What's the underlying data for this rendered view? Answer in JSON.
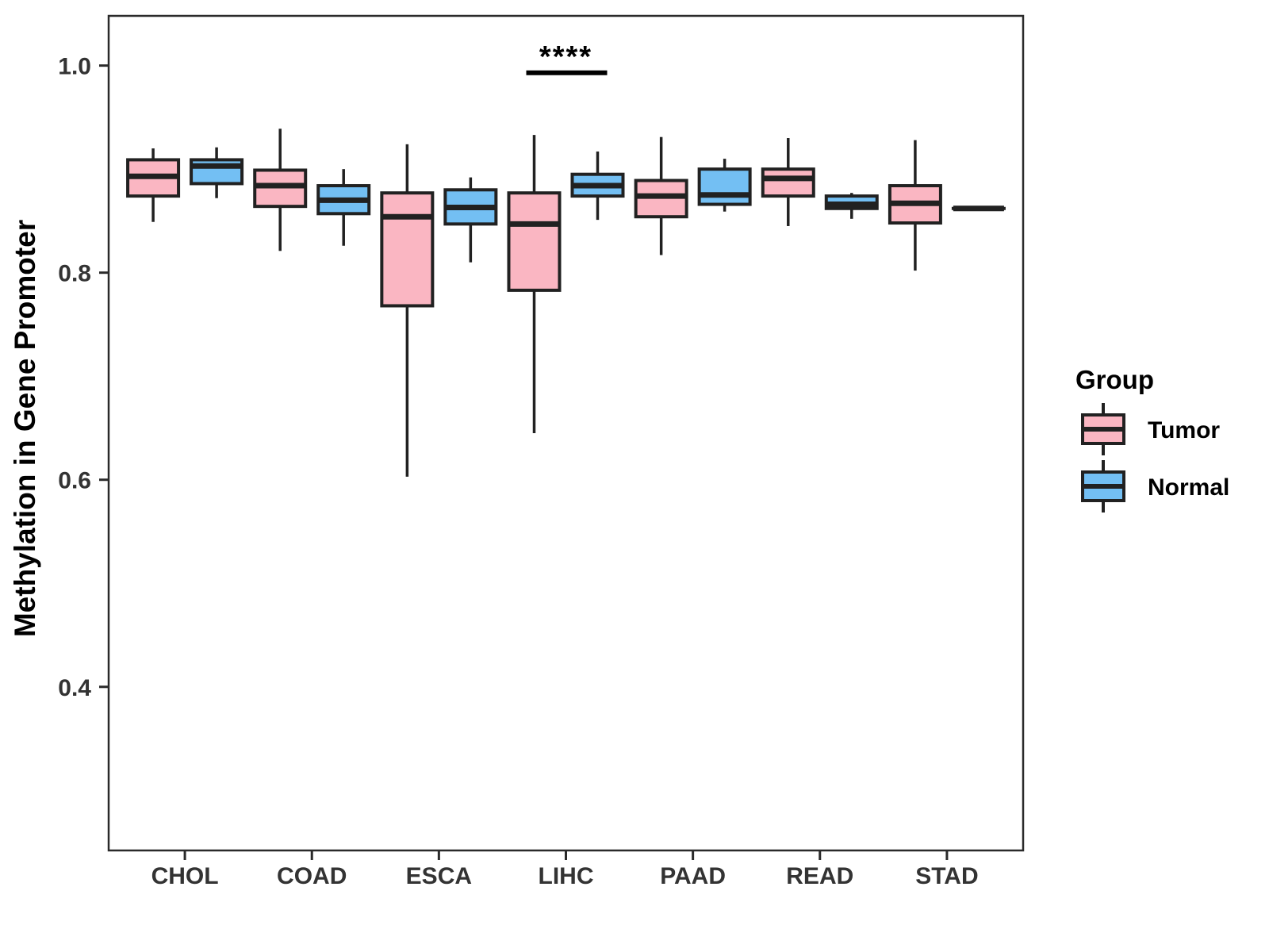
{
  "chart_data": {
    "type": "boxplot",
    "ylabel": "Methylation in Gene Promoter",
    "categories": [
      "CHOL",
      "COAD",
      "ESCA",
      "LIHC",
      "PAAD",
      "READ",
      "STAD"
    ],
    "yticks": [
      1.0,
      0.8,
      0.6,
      0.4
    ],
    "ylim": [
      0.242,
      1.048
    ],
    "grid": false,
    "legend": {
      "title": "Group",
      "position": "right"
    },
    "groups": [
      {
        "name": "Tumor",
        "color": "#FAB6C2"
      },
      {
        "name": "Normal",
        "color": "#73BFF3"
      }
    ],
    "series": [
      {
        "name": "Tumor",
        "boxes": [
          {
            "category": "CHOL",
            "min": 0.849,
            "q1": 0.874,
            "median": 0.893,
            "q3": 0.909,
            "max": 0.92
          },
          {
            "category": "COAD",
            "min": 0.821,
            "q1": 0.864,
            "median": 0.884,
            "q3": 0.899,
            "max": 0.939
          },
          {
            "category": "ESCA",
            "min": 0.603,
            "q1": 0.768,
            "median": 0.854,
            "q3": 0.877,
            "max": 0.924
          },
          {
            "category": "LIHC",
            "min": 0.645,
            "q1": 0.783,
            "median": 0.847,
            "q3": 0.877,
            "max": 0.933
          },
          {
            "category": "PAAD",
            "min": 0.817,
            "q1": 0.854,
            "median": 0.874,
            "q3": 0.889,
            "max": 0.931
          },
          {
            "category": "READ",
            "min": 0.845,
            "q1": 0.874,
            "median": 0.891,
            "q3": 0.9,
            "max": 0.93
          },
          {
            "category": "STAD",
            "min": 0.802,
            "q1": 0.848,
            "median": 0.867,
            "q3": 0.884,
            "max": 0.928
          }
        ]
      },
      {
        "name": "Normal",
        "boxes": [
          {
            "category": "CHOL",
            "min": 0.872,
            "q1": 0.886,
            "median": 0.903,
            "q3": 0.909,
            "max": 0.921
          },
          {
            "category": "COAD",
            "min": 0.826,
            "q1": 0.857,
            "median": 0.87,
            "q3": 0.884,
            "max": 0.9
          },
          {
            "category": "ESCA",
            "min": 0.81,
            "q1": 0.847,
            "median": 0.863,
            "q3": 0.88,
            "max": 0.892
          },
          {
            "category": "LIHC",
            "min": 0.851,
            "q1": 0.874,
            "median": 0.884,
            "q3": 0.895,
            "max": 0.917
          },
          {
            "category": "PAAD",
            "min": 0.859,
            "q1": 0.866,
            "median": 0.875,
            "q3": 0.9,
            "max": 0.91
          },
          {
            "category": "READ",
            "min": 0.852,
            "q1": 0.862,
            "median": 0.866,
            "q3": 0.874,
            "max": 0.877
          },
          {
            "category": "STAD",
            "min": 0.862,
            "q1": 0.862,
            "median": 0.862,
            "q3": 0.862,
            "max": 0.862
          }
        ]
      }
    ],
    "annotation": {
      "label": "****",
      "category": "LIHC",
      "y": 0.993
    },
    "colors": {
      "stroke": "#212121",
      "axis": "#2A2A2A",
      "tick_text": "#333333",
      "annotation": "#000000"
    }
  }
}
